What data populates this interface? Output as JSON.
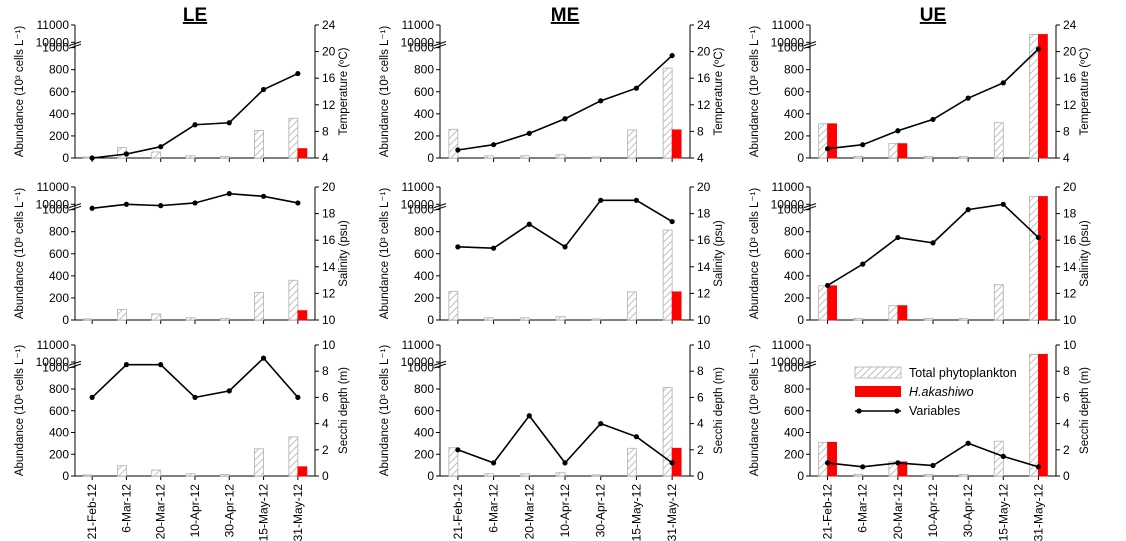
{
  "chart_data": {
    "type": "bar+line",
    "dates": [
      "21-Feb-12",
      "6-Mar-12",
      "20-Mar-12",
      "10-Apr-12",
      "30-Apr-12",
      "15-May-12",
      "31-May-12"
    ],
    "left_axis": {
      "label": "Abundance (10³ cells L⁻¹)",
      "lower_ticks": [
        0,
        200,
        400,
        600,
        800,
        1000
      ],
      "upper_ticks": [
        10000,
        11000
      ],
      "lower_range": [
        0,
        1000
      ],
      "upper_range": [
        10000,
        11000
      ],
      "break_between": [
        1000,
        10000
      ]
    },
    "legend": {
      "position": "inside lower-right panel, top-left",
      "total": "Total phytoplankton",
      "hak": "H.akashiwo",
      "var": "Variables"
    },
    "colors": {
      "total_edge": "#b0b0b0",
      "total_hatch": "#bfbfbf",
      "hak": "#ff0000",
      "line": "#000000"
    },
    "columns": [
      {
        "title": "LE",
        "total": [
          10,
          95,
          55,
          20,
          15,
          250,
          360
        ],
        "hak": [
          0,
          0,
          0,
          0,
          0,
          0,
          85
        ]
      },
      {
        "title": "ME",
        "total": [
          260,
          20,
          20,
          30,
          10,
          255,
          815
        ],
        "hak": [
          0,
          0,
          0,
          0,
          0,
          0,
          255
        ]
      },
      {
        "title": "UE",
        "total": [
          310,
          15,
          130,
          15,
          15,
          320,
          10450
        ],
        "hak": [
          310,
          0,
          130,
          0,
          0,
          0,
          10450
        ]
      }
    ],
    "rows": [
      {
        "variable": "Temperature",
        "axis_label": "Temperature (ºC)",
        "range": [
          4,
          24
        ],
        "ticks": [
          4,
          8,
          12,
          16,
          20,
          24
        ],
        "values": [
          [
            4.0,
            4.6,
            5.7,
            9.0,
            9.3,
            14.3,
            16.7
          ],
          [
            5.2,
            6.0,
            7.7,
            9.9,
            12.6,
            14.5,
            19.4
          ],
          [
            5.4,
            6.0,
            8.1,
            9.8,
            13.0,
            15.3,
            20.4
          ]
        ]
      },
      {
        "variable": "Salinity",
        "axis_label": "Salinity (psu)",
        "range": [
          10,
          20
        ],
        "ticks": [
          10,
          12,
          14,
          16,
          18,
          20
        ],
        "values": [
          [
            18.4,
            18.7,
            18.6,
            18.8,
            19.5,
            19.3,
            18.8
          ],
          [
            15.5,
            15.4,
            17.2,
            15.5,
            19.0,
            19.0,
            17.4
          ],
          [
            12.6,
            14.2,
            16.2,
            15.8,
            18.3,
            18.7,
            16.2
          ]
        ]
      },
      {
        "variable": "Secchi depth",
        "axis_label": "Secchi depth (m)",
        "range": [
          0,
          10
        ],
        "ticks": [
          0,
          2,
          4,
          6,
          8,
          10
        ],
        "values": [
          [
            6.0,
            8.5,
            8.5,
            6.0,
            6.5,
            9.0,
            6.0
          ],
          [
            2.0,
            1.0,
            4.6,
            1.0,
            4.0,
            3.0,
            1.0
          ],
          [
            1.0,
            0.7,
            1.0,
            0.8,
            2.5,
            1.5,
            0.7
          ]
        ]
      }
    ]
  }
}
